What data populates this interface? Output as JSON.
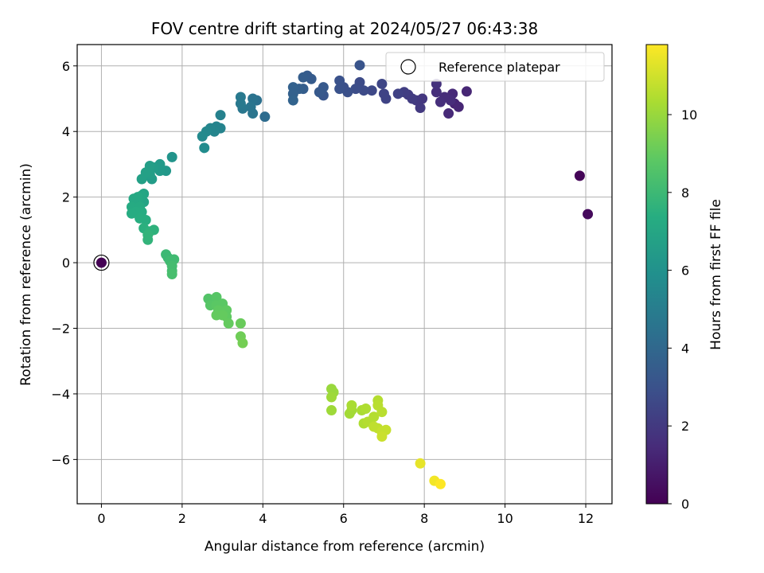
{
  "chart_data": {
    "type": "scatter",
    "title": "FOV centre drift starting at 2024/05/27 06:43:38",
    "xlabel": "Angular distance from reference (arcmin)",
    "ylabel": "Rotation from reference (arcmin)",
    "xlim": [
      -0.6,
      12.65
    ],
    "ylim": [
      -7.35,
      6.65
    ],
    "xticks": [
      0,
      2,
      4,
      6,
      8,
      10,
      12
    ],
    "yticks": [
      -6,
      -4,
      -2,
      0,
      2,
      4,
      6
    ],
    "grid": true,
    "legend": {
      "placement": "top-right",
      "entries": [
        "Reference platepar"
      ]
    },
    "reference_point": {
      "x": 0,
      "y": 0,
      "hours": 0
    },
    "colorbar": {
      "label": "Hours from first FF file",
      "range": [
        0,
        11.8
      ],
      "ticks": [
        0,
        2,
        4,
        6,
        8,
        10
      ],
      "colormap": "viridis"
    },
    "points": [
      [
        11.85,
        2.65,
        0.1
      ],
      [
        12.05,
        1.48,
        0.3
      ],
      [
        8.75,
        4.85,
        1.2
      ],
      [
        8.85,
        4.75,
        1.3
      ],
      [
        9.05,
        5.22,
        1.3
      ],
      [
        8.6,
        4.55,
        1.4
      ],
      [
        8.7,
        5.15,
        1.4
      ],
      [
        8.65,
        4.95,
        1.5
      ],
      [
        8.5,
        5.05,
        1.5
      ],
      [
        8.3,
        5.2,
        1.6
      ],
      [
        8.4,
        4.9,
        1.6
      ],
      [
        8.3,
        5.45,
        1.7
      ],
      [
        7.95,
        5.0,
        1.9
      ],
      [
        7.9,
        4.72,
        2.0
      ],
      [
        7.8,
        4.95,
        2.0
      ],
      [
        7.7,
        5.0,
        2.1
      ],
      [
        7.6,
        5.12,
        2.1
      ],
      [
        7.5,
        5.2,
        2.2
      ],
      [
        7.35,
        5.15,
        2.3
      ],
      [
        7.05,
        5.0,
        2.4
      ],
      [
        7.0,
        5.15,
        2.4
      ],
      [
        6.95,
        5.45,
        2.5
      ],
      [
        6.7,
        5.25,
        2.6
      ],
      [
        6.5,
        5.25,
        2.7
      ],
      [
        6.4,
        5.5,
        2.7
      ],
      [
        6.3,
        5.3,
        2.8
      ],
      [
        6.1,
        5.2,
        2.9
      ],
      [
        6.0,
        5.35,
        2.9
      ],
      [
        5.9,
        5.3,
        3.0
      ],
      [
        5.9,
        5.55,
        3.0
      ],
      [
        6.4,
        6.02,
        3.1
      ],
      [
        5.5,
        5.1,
        3.2
      ],
      [
        5.5,
        5.35,
        3.3
      ],
      [
        5.4,
        5.2,
        3.3
      ],
      [
        5.2,
        5.6,
        3.4
      ],
      [
        5.1,
        5.7,
        3.4
      ],
      [
        5.0,
        5.65,
        3.5
      ],
      [
        5.0,
        5.3,
        3.5
      ],
      [
        4.9,
        5.3,
        3.6
      ],
      [
        4.75,
        5.35,
        3.7
      ],
      [
        4.75,
        5.15,
        3.7
      ],
      [
        4.75,
        4.95,
        3.8
      ],
      [
        4.05,
        4.45,
        4.2
      ],
      [
        3.85,
        4.95,
        4.4
      ],
      [
        3.75,
        5.0,
        4.5
      ],
      [
        3.75,
        4.55,
        4.6
      ],
      [
        3.7,
        4.75,
        4.6
      ],
      [
        3.5,
        4.7,
        4.7
      ],
      [
        3.45,
        5.05,
        4.8
      ],
      [
        3.45,
        4.85,
        4.8
      ],
      [
        2.95,
        4.5,
        5.2
      ],
      [
        2.95,
        4.1,
        5.3
      ],
      [
        2.85,
        4.15,
        5.3
      ],
      [
        2.8,
        4.0,
        5.4
      ],
      [
        2.7,
        4.1,
        5.4
      ],
      [
        2.6,
        4.0,
        5.5
      ],
      [
        2.5,
        3.85,
        5.6
      ],
      [
        2.55,
        3.5,
        5.7
      ],
      [
        1.75,
        3.22,
        6.1
      ],
      [
        1.6,
        2.8,
        6.3
      ],
      [
        1.45,
        2.8,
        6.4
      ],
      [
        1.45,
        3.0,
        6.4
      ],
      [
        1.3,
        2.9,
        6.5
      ],
      [
        1.25,
        2.55,
        6.5
      ],
      [
        1.2,
        2.95,
        6.6
      ],
      [
        1.2,
        2.7,
        6.6
      ],
      [
        1.1,
        2.75,
        6.7
      ],
      [
        1.0,
        2.55,
        6.7
      ],
      [
        1.05,
        2.1,
        6.9
      ],
      [
        1.05,
        1.85,
        6.9
      ],
      [
        1.0,
        2.05,
        7.0
      ],
      [
        0.95,
        1.95,
        7.0
      ],
      [
        0.9,
        2.0,
        7.1
      ],
      [
        0.85,
        1.85,
        7.1
      ],
      [
        0.8,
        1.95,
        7.1
      ],
      [
        0.75,
        1.7,
        7.2
      ],
      [
        0.95,
        1.7,
        7.2
      ],
      [
        1.0,
        1.55,
        7.3
      ],
      [
        0.85,
        1.55,
        7.3
      ],
      [
        0.75,
        1.5,
        7.3
      ],
      [
        0.95,
        1.35,
        7.4
      ],
      [
        1.1,
        1.3,
        7.4
      ],
      [
        1.05,
        1.05,
        7.5
      ],
      [
        1.2,
        0.95,
        7.6
      ],
      [
        1.3,
        1.0,
        7.6
      ],
      [
        1.15,
        0.85,
        7.7
      ],
      [
        1.15,
        0.7,
        7.7
      ],
      [
        1.6,
        0.25,
        8.0
      ],
      [
        1.65,
        0.15,
        8.0
      ],
      [
        1.7,
        0.05,
        8.1
      ],
      [
        1.8,
        0.1,
        8.1
      ],
      [
        1.75,
        -0.1,
        8.2
      ],
      [
        1.75,
        -0.25,
        8.2
      ],
      [
        1.75,
        -0.35,
        8.3
      ],
      [
        2.65,
        -1.1,
        8.6
      ],
      [
        2.85,
        -1.05,
        8.7
      ],
      [
        2.7,
        -1.3,
        8.7
      ],
      [
        2.85,
        -1.3,
        8.8
      ],
      [
        3.0,
        -1.25,
        8.8
      ],
      [
        2.9,
        -1.45,
        8.9
      ],
      [
        3.1,
        -1.45,
        8.9
      ],
      [
        3.1,
        -1.65,
        8.9
      ],
      [
        2.85,
        -1.6,
        9.0
      ],
      [
        3.0,
        -1.6,
        9.0
      ],
      [
        3.15,
        -1.85,
        9.0
      ],
      [
        3.45,
        -1.85,
        9.1
      ],
      [
        3.45,
        -2.25,
        9.2
      ],
      [
        3.5,
        -2.45,
        9.3
      ],
      [
        5.7,
        -3.85,
        10.0
      ],
      [
        5.75,
        -3.95,
        10.0
      ],
      [
        5.7,
        -4.1,
        10.1
      ],
      [
        5.7,
        -4.5,
        10.1
      ],
      [
        6.15,
        -4.6,
        10.2
      ],
      [
        6.2,
        -4.5,
        10.2
      ],
      [
        6.2,
        -4.35,
        10.3
      ],
      [
        6.45,
        -4.5,
        10.3
      ],
      [
        6.55,
        -4.45,
        10.4
      ],
      [
        6.5,
        -4.9,
        10.4
      ],
      [
        6.6,
        -4.85,
        10.5
      ],
      [
        6.75,
        -4.7,
        10.5
      ],
      [
        6.85,
        -4.2,
        10.5
      ],
      [
        6.85,
        -4.35,
        10.6
      ],
      [
        6.95,
        -4.55,
        10.6
      ],
      [
        6.75,
        -5.0,
        10.7
      ],
      [
        6.85,
        -5.05,
        10.7
      ],
      [
        6.95,
        -5.15,
        10.8
      ],
      [
        7.05,
        -5.1,
        10.8
      ],
      [
        6.95,
        -5.3,
        10.9
      ],
      [
        7.9,
        -6.12,
        11.4
      ],
      [
        8.25,
        -6.65,
        11.6
      ],
      [
        8.4,
        -6.75,
        11.8
      ]
    ]
  }
}
